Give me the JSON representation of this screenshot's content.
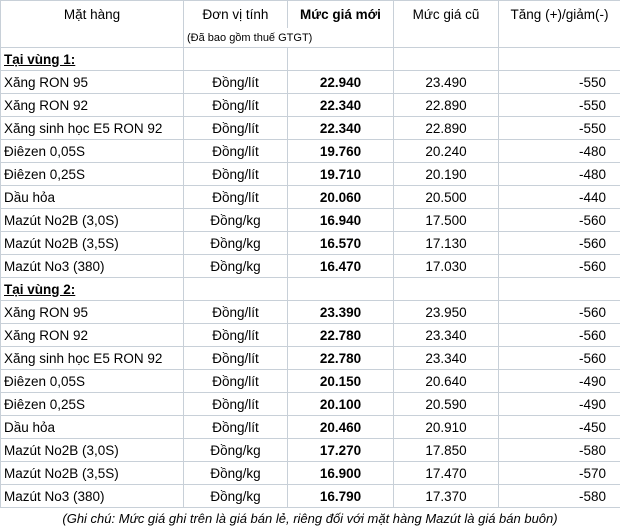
{
  "header": {
    "columns": [
      "Mặt hàng",
      "Đơn vị tính",
      "Mức giá mới",
      "Mức giá cũ",
      "Tăng (+)/giảm(-)"
    ],
    "note": "(Đã bao gồm thuế GTGT)"
  },
  "sections": [
    {
      "label": "Tại vùng 1:",
      "rows": [
        [
          "Xăng RON 95",
          "Đồng/lít",
          "22.940",
          "23.490",
          "-550"
        ],
        [
          "Xăng RON 92",
          "Đồng/lít",
          "22.340",
          "22.890",
          "-550"
        ],
        [
          "Xăng sinh học E5 RON 92",
          "Đồng/lít",
          "22.340",
          "22.890",
          "-550"
        ],
        [
          "Điêzen 0,05S",
          "Đồng/lít",
          "19.760",
          "20.240",
          "-480"
        ],
        [
          "Điêzen 0,25S",
          "Đồng/lít",
          "19.710",
          "20.190",
          "-480"
        ],
        [
          "Dầu hỏa",
          "Đồng/lít",
          "20.060",
          "20.500",
          "-440"
        ],
        [
          "Mazút No2B (3,0S)",
          "Đồng/kg",
          "16.940",
          "17.500",
          "-560"
        ],
        [
          "Mazút No2B (3,5S)",
          "Đồng/kg",
          "16.570",
          "17.130",
          "-560"
        ],
        [
          "Mazút No3 (380)",
          "Đồng/kg",
          "16.470",
          "17.030",
          "-560"
        ]
      ]
    },
    {
      "label": "Tại vùng 2:",
      "rows": [
        [
          "Xăng RON 95",
          "Đồng/lít",
          "23.390",
          "23.950",
          "-560"
        ],
        [
          "Xăng RON 92",
          "Đồng/lít",
          "22.780",
          "23.340",
          "-560"
        ],
        [
          "Xăng sinh học E5 RON 92",
          "Đồng/lít",
          "22.780",
          "23.340",
          "-560"
        ],
        [
          "Điêzen 0,05S",
          "Đồng/lít",
          "20.150",
          "20.640",
          "-490"
        ],
        [
          "Điêzen 0,25S",
          "Đồng/lít",
          "20.100",
          "20.590",
          "-490"
        ],
        [
          "Dầu hỏa",
          "Đồng/lít",
          "20.460",
          "20.910",
          "-450"
        ],
        [
          "Mazút No2B (3,0S)",
          "Đồng/kg",
          "17.270",
          "17.850",
          "-580"
        ],
        [
          "Mazút No2B (3,5S)",
          "Đồng/kg",
          "16.900",
          "17.470",
          "-570"
        ],
        [
          "Mazút No3 (380)",
          "Đồng/kg",
          "16.790",
          "17.370",
          "-580"
        ]
      ]
    }
  ],
  "footnote": "(Ghi chú: Mức giá ghi trên là giá bán lẻ, riêng đối với mặt hàng Mazút là giá bán buôn)"
}
